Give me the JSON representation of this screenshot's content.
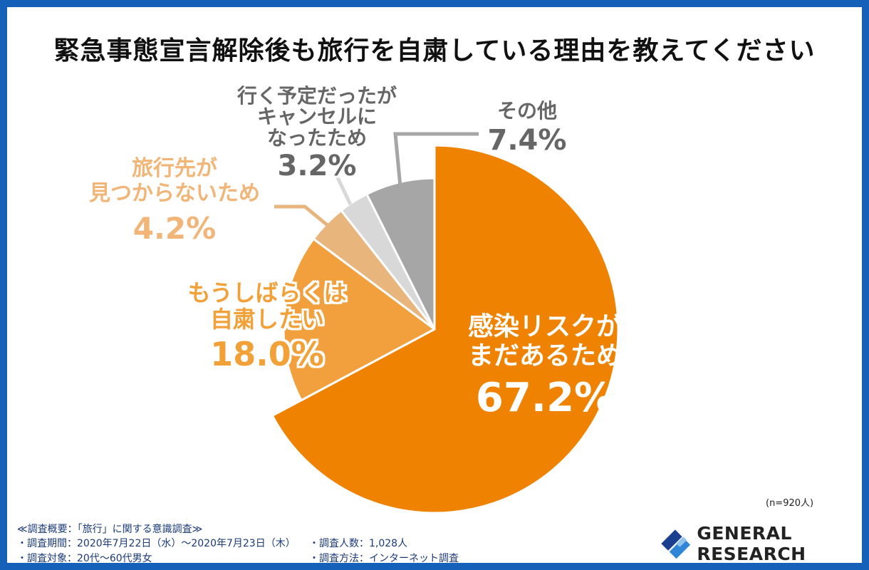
{
  "title": "緊急事態宣言解除後も旅行を自粛している理由を教えてください",
  "chart_data": {
    "type": "pie",
    "title": "緊急事態宣言解除後も旅行を自粛している理由を教えてください",
    "slices": [
      {
        "label": "感染リスクがまだあるため",
        "value": 67.2,
        "pct_text": "67.2%",
        "color": "#ef8200"
      },
      {
        "label": "もうしばらくは自粛したい",
        "value": 18.0,
        "pct_text": "18.0%",
        "color": "#f2a03e"
      },
      {
        "label": "旅行先が見つからないため",
        "value": 4.2,
        "pct_text": "4.2%",
        "color": "#e8b67c"
      },
      {
        "label": "行く予定だったがキャンセルになったため",
        "value": 3.2,
        "pct_text": "3.2%",
        "color": "#d8d8d8"
      },
      {
        "label": "その他",
        "value": 7.4,
        "pct_text": "7.4%",
        "color": "#a6a6a6"
      }
    ],
    "start": "12 o'clock",
    "direction": "clockwise"
  },
  "labels": {
    "kansen": {
      "line1": "感染リスクが",
      "line2": "まだあるため"
    },
    "jishuku": {
      "line1": "もうしばらくは",
      "line2": "自粛したい"
    },
    "mitsukaranai": {
      "line1": "旅行先が",
      "line2": "見つからないため"
    },
    "cancel": {
      "line1": "行く予定だったが",
      "line2": "キャンセルに",
      "line3": "なったため"
    },
    "other": {
      "line1": "その他"
    }
  },
  "sample_size": "(n=920人)",
  "survey": {
    "heading": "≪調査概要：「旅行」に関する意識調査≫",
    "period": "・調査期間：2020年7月22日（水）～2020年7月23日（木）",
    "count": "・調査人数：1,028人",
    "target": "・調査対象：20代～60代男女",
    "method": "・調査方法：インターネット調査"
  },
  "logo": {
    "text": "GENERAL RESEARCH",
    "colors": [
      "#1b3f8f",
      "#2f86d6",
      "#8fc3ee"
    ]
  }
}
